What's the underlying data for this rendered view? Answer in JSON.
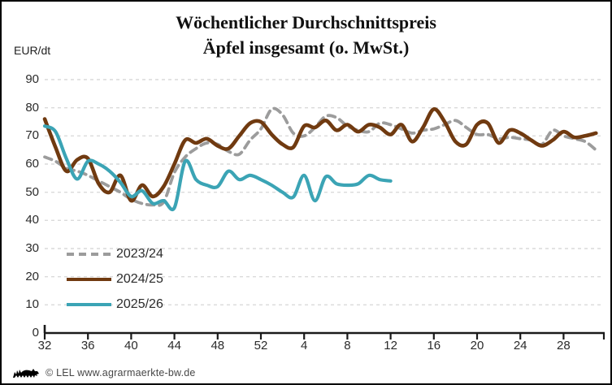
{
  "header": {
    "title_line1": "Wöchentlicher Durchschnittspreis",
    "title_line2": "Äpfel insgesamt (o. MwSt.)",
    "y_axis_unit": "EUR/dt"
  },
  "footer": {
    "credit": "© LEL www.agrarmaerkte-bw.de",
    "logo_name": "baden-wuerttemberg-lion-logo"
  },
  "colors": {
    "series_2023_24": "#9C9C9C",
    "series_2024_25": "#703A10",
    "series_2025_26": "#3BA4B5",
    "gridline": "#DADADA",
    "axis": "#1A1A1A",
    "frame_border": "#000000",
    "background": "#FFFFFF"
  },
  "chart_data": {
    "type": "line",
    "title": "Wöchentlicher Durchschnittspreis Äpfel insgesamt (o. MwSt.)",
    "xlabel": "",
    "ylabel": "EUR/dt",
    "x_unit": "calendar week",
    "ylim": [
      0,
      90
    ],
    "ytick_interval": 10,
    "ytick_labels": [
      "0",
      "10",
      "20",
      "30",
      "40",
      "50",
      "60",
      "70",
      "80",
      "90"
    ],
    "xtick_labels": [
      "32",
      "36",
      "40",
      "44",
      "48",
      "52",
      "4",
      "8",
      "12",
      "16",
      "20",
      "24",
      "28"
    ],
    "grid": "horizontal-dashed",
    "legend_position": "inside-bottom-left",
    "categories": [
      "32",
      "33",
      "34",
      "35",
      "36",
      "37",
      "38",
      "39",
      "40",
      "41",
      "42",
      "43",
      "44",
      "45",
      "46",
      "47",
      "48",
      "49",
      "50",
      "51",
      "52",
      "1",
      "2",
      "3",
      "4",
      "5",
      "6",
      "7",
      "8",
      "9",
      "10",
      "11",
      "12",
      "13",
      "14",
      "15",
      "16",
      "17",
      "18",
      "19",
      "20",
      "21",
      "22",
      "23",
      "24",
      "25",
      "26",
      "27",
      "28",
      "29",
      "30",
      "31"
    ],
    "series": [
      {
        "name": "2023/24",
        "color": "#9C9C9C",
        "line_style": "dashed",
        "values": [
          62.5,
          61,
          58.5,
          57.5,
          56,
          54,
          52,
          50,
          47.5,
          46,
          45.5,
          46.5,
          57,
          62.5,
          65.5,
          67.5,
          67,
          64.5,
          63.5,
          68.5,
          72.5,
          79.5,
          77.5,
          71,
          70,
          73,
          77,
          76.5,
          73.5,
          72,
          71.5,
          74.5,
          74,
          72.5,
          71,
          72,
          72.5,
          74,
          75.5,
          73,
          70.5,
          70.5,
          69,
          69.5,
          69,
          68.5,
          67,
          72,
          70,
          69,
          68,
          65
        ]
      },
      {
        "name": "2024/25",
        "color": "#703A10",
        "line_style": "solid",
        "values": [
          76,
          66,
          57.5,
          61.5,
          62,
          53,
          50,
          56,
          47,
          52.5,
          48.5,
          52,
          60,
          68.5,
          67.5,
          69,
          66.5,
          65.5,
          70,
          74.5,
          75,
          70.5,
          67,
          66,
          73.5,
          73,
          75.5,
          72,
          74,
          71.5,
          74,
          73,
          70.5,
          74,
          68,
          73,
          79.5,
          75,
          68,
          67,
          74,
          74.5,
          67.5,
          72,
          71,
          68.5,
          66.5,
          68.5,
          71.5,
          69.5,
          70,
          71
        ]
      },
      {
        "name": "2025/26",
        "color": "#3BA4B5",
        "line_style": "solid",
        "values": [
          73.5,
          71.5,
          62,
          54.7,
          61,
          60,
          57.5,
          53.5,
          48.5,
          50.5,
          46,
          47,
          44.5,
          61,
          54.5,
          52.5,
          52,
          57.5,
          54.5,
          56,
          54.5,
          52.5,
          50,
          48.3,
          56,
          47,
          55.5,
          53,
          52.5,
          53,
          56,
          54.5,
          54
        ]
      }
    ]
  }
}
